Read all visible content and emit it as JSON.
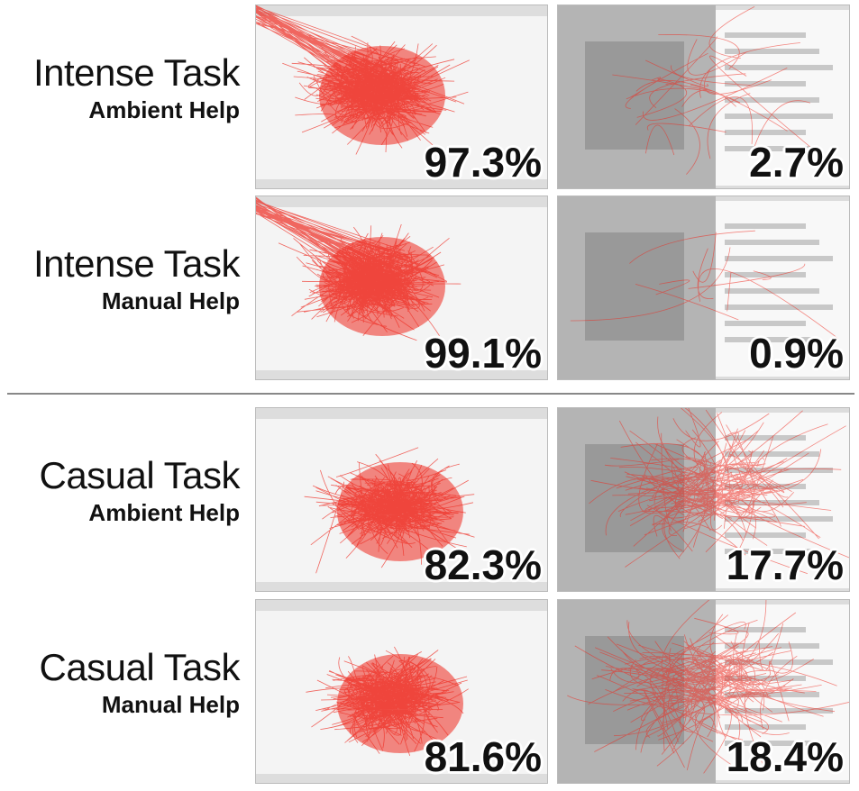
{
  "rows": [
    {
      "task": "Intense Task",
      "help": "Ambient Help",
      "panels": [
        {
          "percent": "97.3%"
        },
        {
          "percent": "2.7%"
        }
      ]
    },
    {
      "task": "Intense Task",
      "help": "Manual Help",
      "panels": [
        {
          "percent": "99.1%"
        },
        {
          "percent": "0.9%"
        }
      ]
    },
    {
      "task": "Casual Task",
      "help": "Ambient Help",
      "panels": [
        {
          "percent": "82.3%"
        },
        {
          "percent": "17.7%"
        }
      ]
    },
    {
      "task": "Casual Task",
      "help": "Manual Help",
      "panels": [
        {
          "percent": "81.6%"
        },
        {
          "percent": "18.4%"
        }
      ]
    }
  ]
}
